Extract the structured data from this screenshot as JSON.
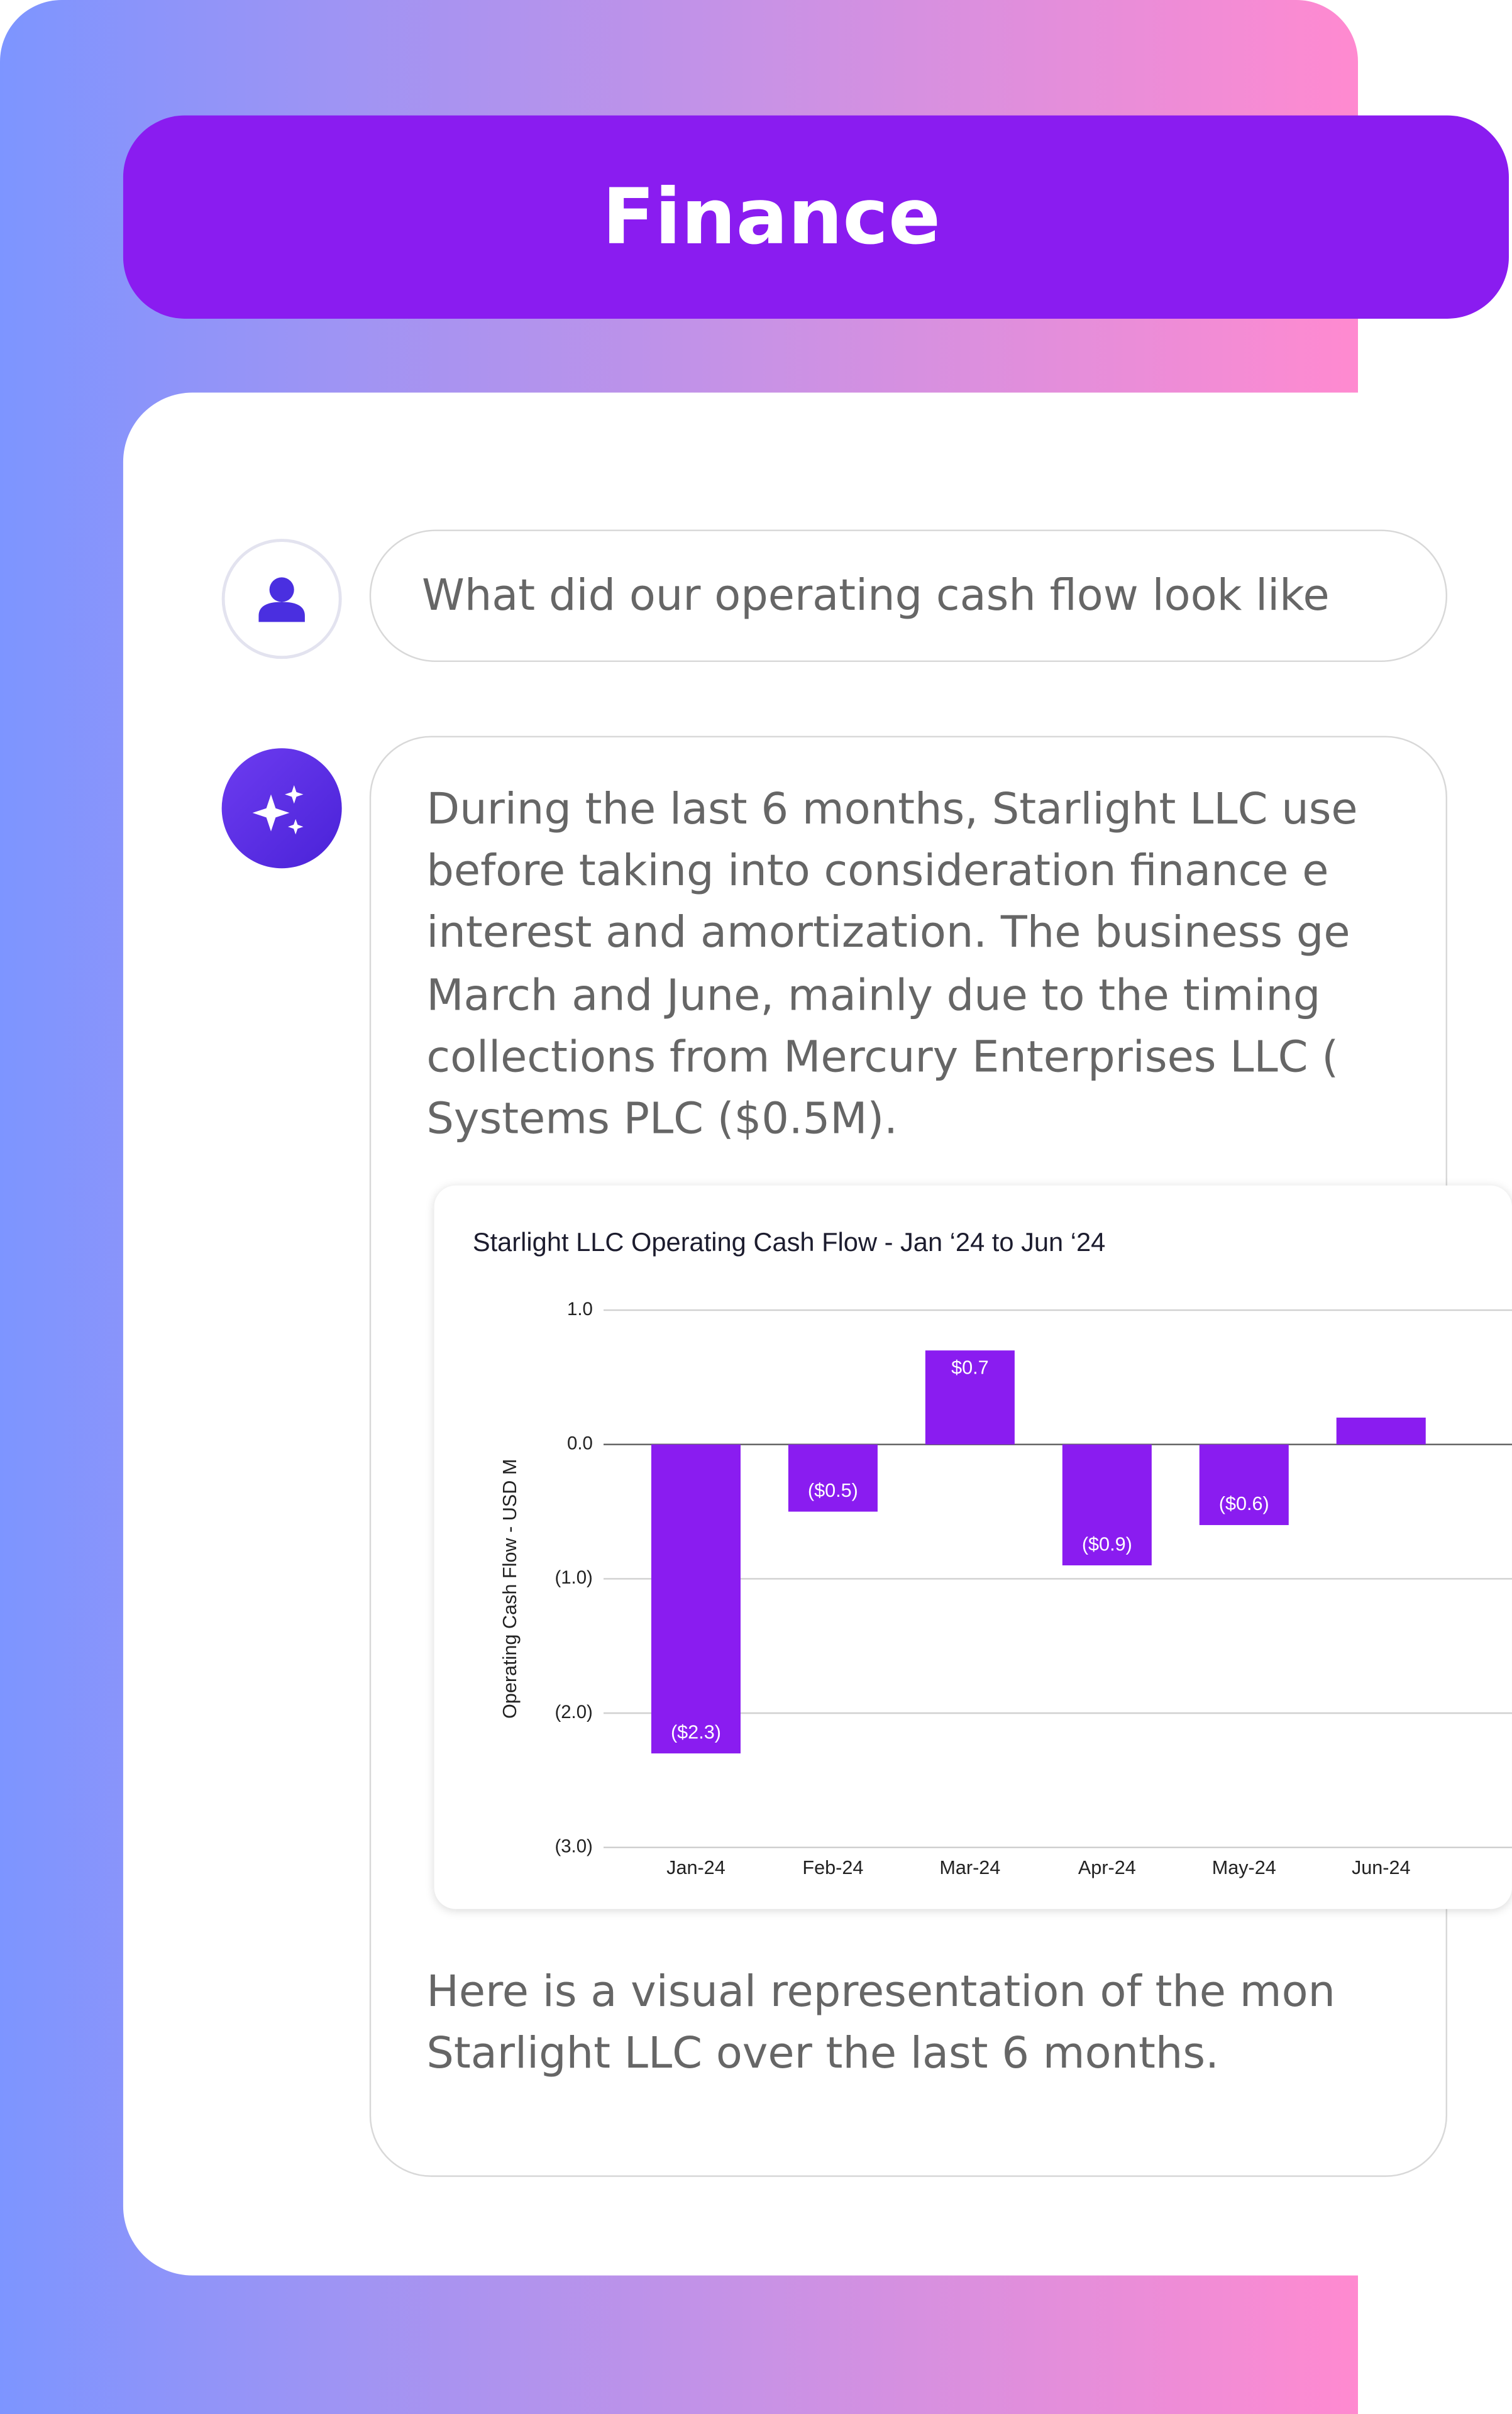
{
  "header": {
    "title": "Finance"
  },
  "chat": {
    "user_message": "What did our operating cash flow look like",
    "assistant_message_lines": [
      "During the last 6 months, Starlight LLC use",
      "before taking into consideration finance e",
      "interest and amortization. The business ge",
      "March and June, mainly due to the timing",
      "collections from Mercury Enterprises LLC (",
      "Systems PLC ($0.5M)."
    ],
    "assistant_followup_lines": [
      "Here is a visual representation of the mon",
      "Starlight LLC over the last 6 months."
    ]
  },
  "chart_data": {
    "type": "bar",
    "title": "Starlight LLC Operating Cash Flow - Jan ‘24 to Jun ‘24",
    "y_label": "Operating Cash Flow - USD M",
    "categories": [
      "Jan-24",
      "Feb-24",
      "Mar-24",
      "Apr-24",
      "May-24",
      "Jun-24"
    ],
    "values": [
      -2.3,
      -0.5,
      0.7,
      -0.9,
      -0.6,
      0.2
    ],
    "value_labels": [
      "($2.3)",
      "($0.5)",
      "$0.7",
      "($0.9)",
      "($0.6)",
      null
    ],
    "color": "#8a1cf0",
    "ylim": [
      -3,
      1
    ],
    "yticks": [
      {
        "value": 1,
        "label": "1.0"
      },
      {
        "value": 0,
        "label": "0.0"
      },
      {
        "value": -1,
        "label": "(1.0)"
      },
      {
        "value": -2,
        "label": "(2.0)"
      },
      {
        "value": -3,
        "label": "(3.0)"
      }
    ],
    "grid": true
  }
}
